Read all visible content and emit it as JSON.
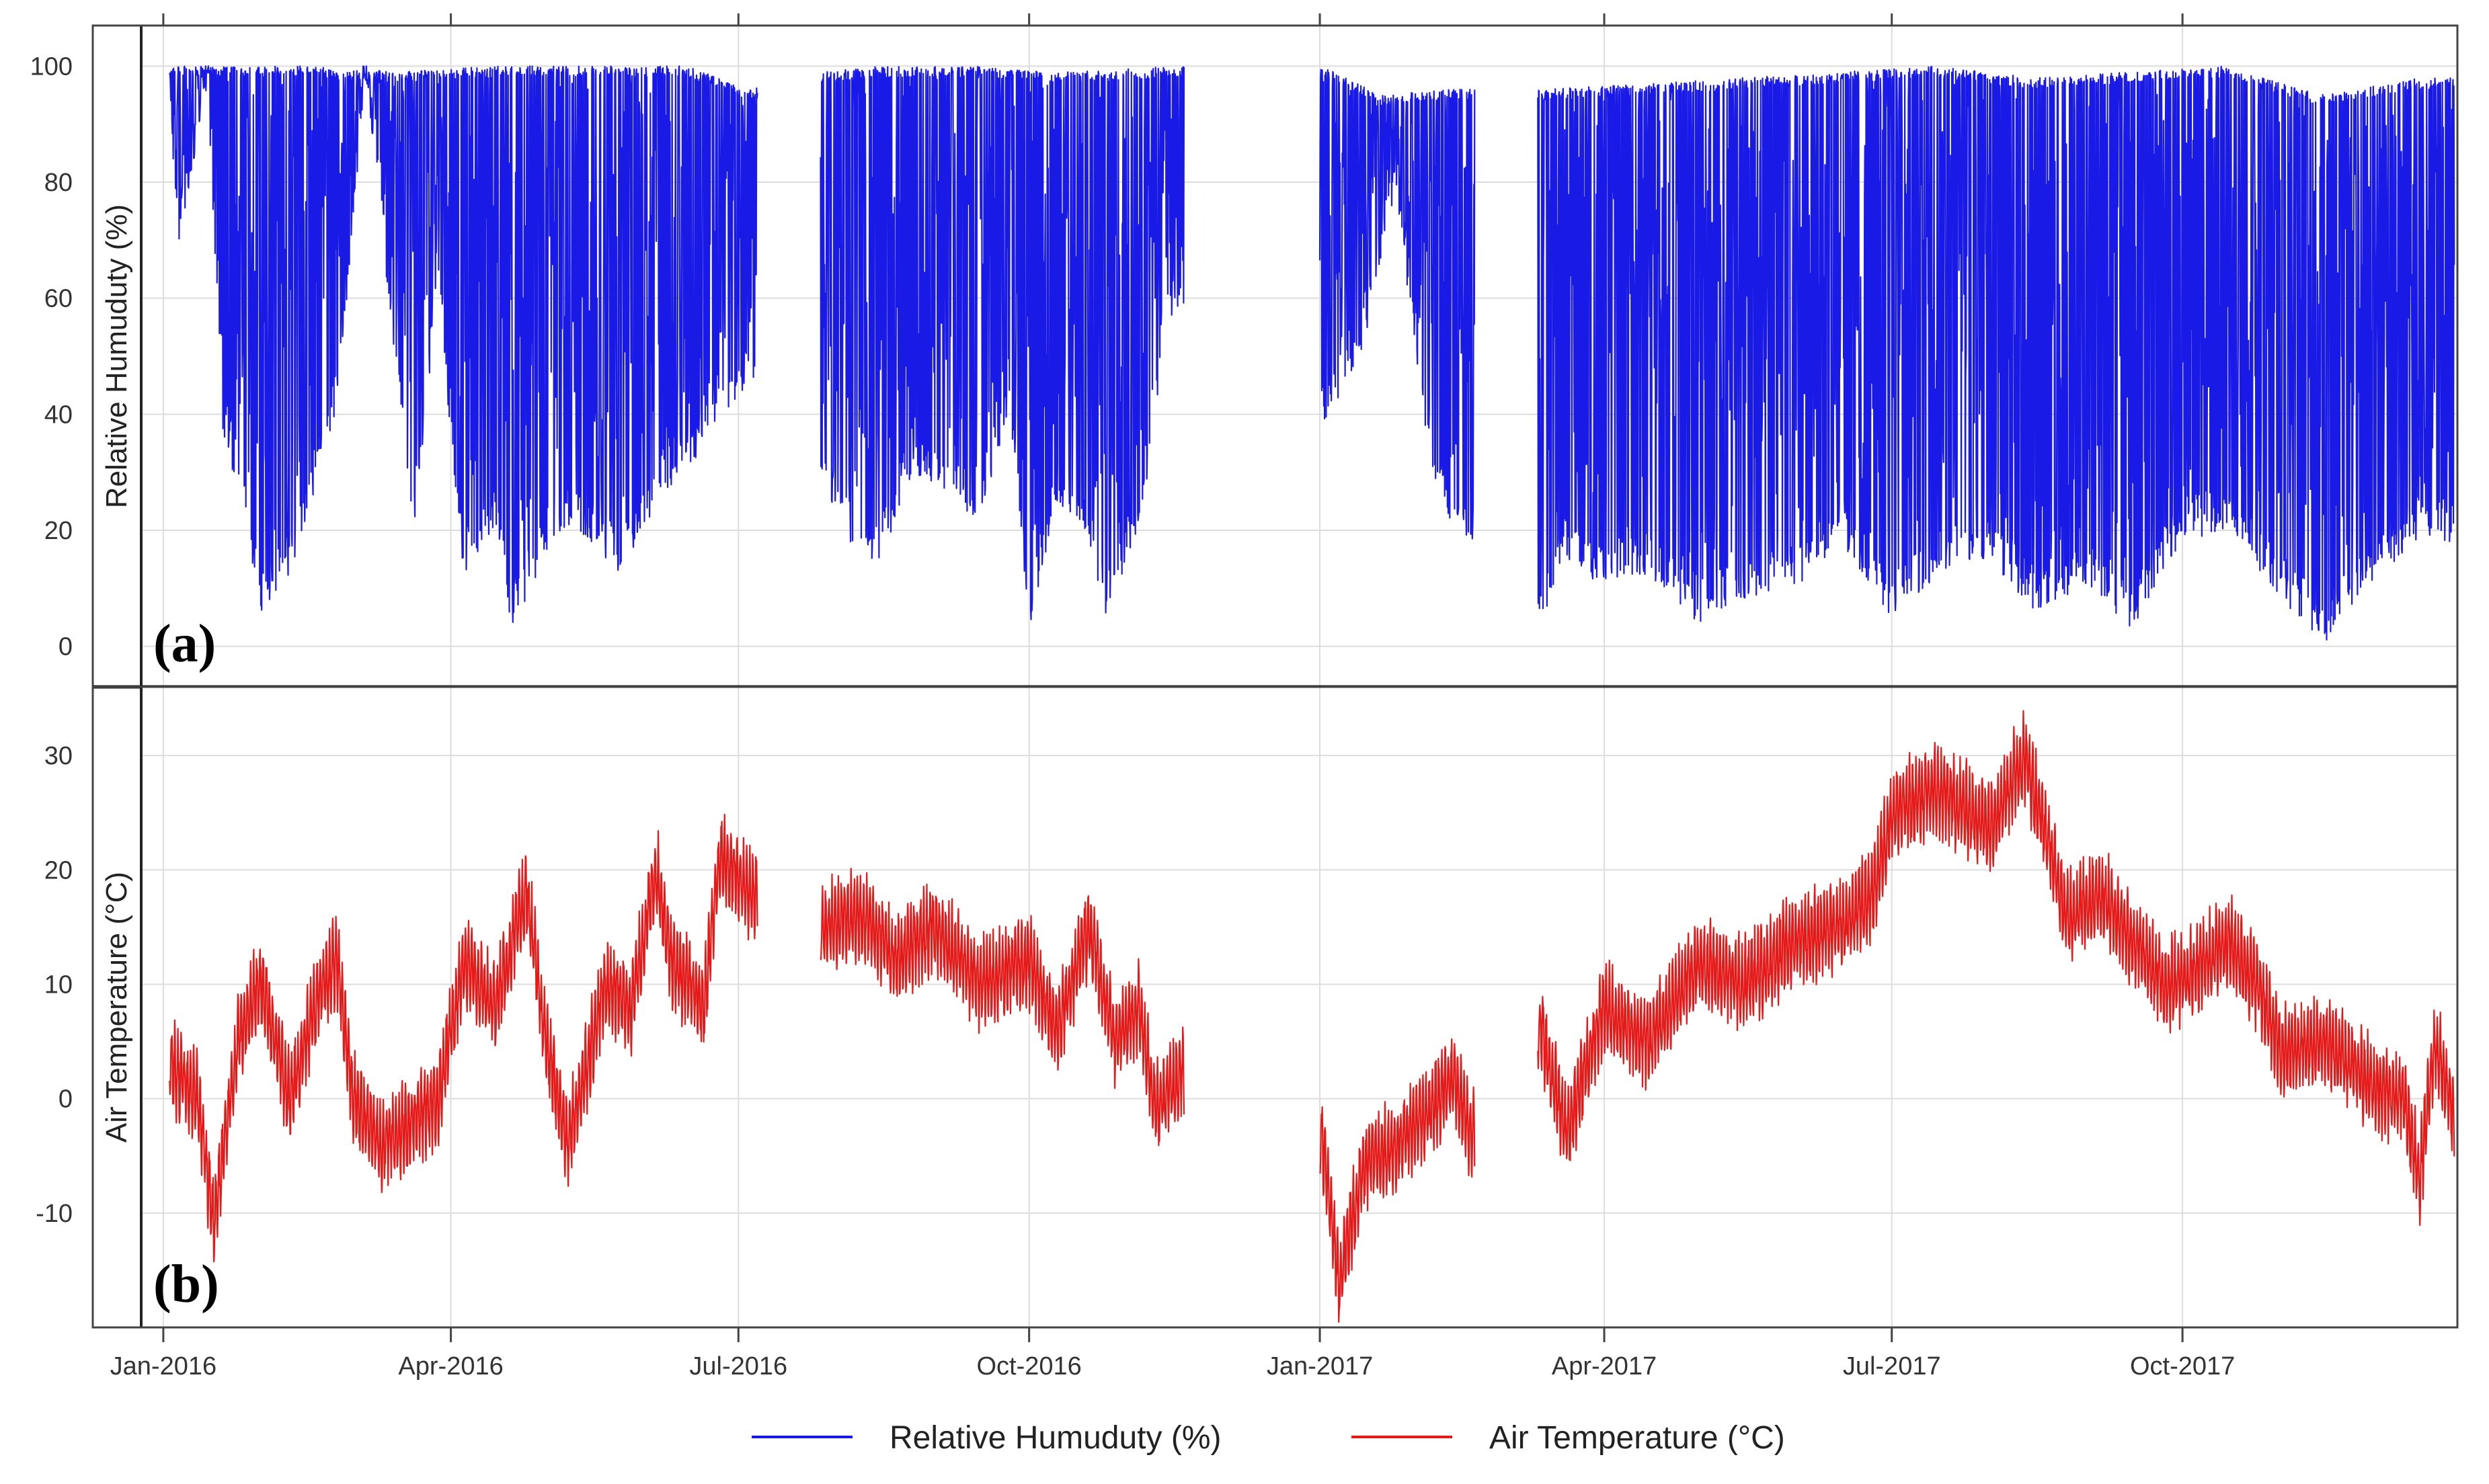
{
  "chart_data": [
    {
      "panel": "a",
      "panel_label_text": "a",
      "type": "line",
      "ylabel": "Relative Humuduty (%)",
      "ylim": [
        -7,
        107
      ],
      "yticks": [
        0,
        20,
        40,
        60,
        80,
        100
      ],
      "xlim": [
        "2015-12-25",
        "2017-12-27"
      ],
      "color": "#1a1ae6",
      "value_range": [
        0,
        100
      ],
      "gaps": [
        [
          "2016-07-07",
          "2016-07-27"
        ],
        [
          "2016-11-19",
          "2017-01-01"
        ],
        [
          "2017-02-19",
          "2017-03-11"
        ]
      ],
      "series": [
        {
          "name": "Relative Humuduty (%)",
          "daily_min_envelope": [
            [
              "2016-01-03",
              92
            ],
            [
              "2016-01-06",
              70
            ],
            [
              "2016-01-15",
              96
            ],
            [
              "2016-01-20",
              36
            ],
            [
              "2016-01-25",
              26
            ],
            [
              "2016-02-01",
              6
            ],
            [
              "2016-02-10",
              12
            ],
            [
              "2016-02-15",
              20
            ],
            [
              "2016-02-25",
              40
            ],
            [
              "2016-03-05",
              99
            ],
            [
              "2016-03-20",
              18
            ],
            [
              "2016-03-28",
              60
            ],
            [
              "2016-04-05",
              12
            ],
            [
              "2016-04-15",
              20
            ],
            [
              "2016-04-20",
              3
            ],
            [
              "2016-04-25",
              8
            ],
            [
              "2016-05-05",
              20
            ],
            [
              "2016-05-15",
              18
            ],
            [
              "2016-05-25",
              12
            ],
            [
              "2016-06-05",
              24
            ],
            [
              "2016-06-15",
              30
            ],
            [
              "2016-06-25",
              40
            ],
            [
              "2016-07-05",
              44
            ],
            [
              "2016-07-28",
              26
            ],
            [
              "2016-08-05",
              18
            ],
            [
              "2016-08-15",
              14
            ],
            [
              "2016-08-25",
              30
            ],
            [
              "2016-09-05",
              25
            ],
            [
              "2016-09-15",
              22
            ],
            [
              "2016-09-25",
              40
            ],
            [
              "2016-10-01",
              3
            ],
            [
              "2016-10-10",
              25
            ],
            [
              "2016-10-20",
              18
            ],
            [
              "2016-10-25",
              5
            ],
            [
              "2016-11-05",
              20
            ],
            [
              "2016-11-15",
              57
            ],
            [
              "2017-01-02",
              37
            ],
            [
              "2017-01-15",
              52
            ],
            [
              "2017-01-25",
              78
            ],
            [
              "2017-02-05",
              30
            ],
            [
              "2017-02-12",
              21
            ],
            [
              "2017-03-12",
              4
            ],
            [
              "2017-03-20",
              15
            ],
            [
              "2017-04-01",
              10
            ],
            [
              "2017-04-15",
              12
            ],
            [
              "2017-05-01",
              4
            ],
            [
              "2017-05-15",
              8
            ],
            [
              "2017-06-01",
              10
            ],
            [
              "2017-06-15",
              18
            ],
            [
              "2017-07-01",
              5
            ],
            [
              "2017-07-15",
              12
            ],
            [
              "2017-08-01",
              15
            ],
            [
              "2017-08-15",
              6
            ],
            [
              "2017-09-01",
              10
            ],
            [
              "2017-09-15",
              3
            ],
            [
              "2017-10-01",
              18
            ],
            [
              "2017-10-15",
              20
            ],
            [
              "2017-11-01",
              8
            ],
            [
              "2017-11-15",
              0
            ],
            [
              "2017-12-01",
              12
            ],
            [
              "2017-12-15",
              18
            ]
          ],
          "daily_max_envelope": [
            [
              "2016-01-03",
              100
            ],
            [
              "2016-02-15",
              100
            ],
            [
              "2016-03-15",
              99
            ],
            [
              "2016-04-15",
              100
            ],
            [
              "2016-05-15",
              100
            ],
            [
              "2016-06-15",
              100
            ],
            [
              "2016-07-05",
              96
            ],
            [
              "2016-07-28",
              99
            ],
            [
              "2016-08-15",
              100
            ],
            [
              "2016-09-15",
              100
            ],
            [
              "2016-10-15",
              99
            ],
            [
              "2016-11-15",
              100
            ],
            [
              "2017-01-02",
              100
            ],
            [
              "2017-01-20",
              95
            ],
            [
              "2017-02-12",
              96
            ],
            [
              "2017-03-12",
              96
            ],
            [
              "2017-04-15",
              97
            ],
            [
              "2017-05-15",
              98
            ],
            [
              "2017-06-15",
              99
            ],
            [
              "2017-07-15",
              100
            ],
            [
              "2017-08-15",
              98
            ],
            [
              "2017-09-15",
              99
            ],
            [
              "2017-10-15",
              100
            ],
            [
              "2017-11-01",
              97
            ],
            [
              "2017-11-15",
              95
            ],
            [
              "2017-12-15",
              98
            ]
          ]
        }
      ]
    },
    {
      "panel": "b",
      "panel_label_text": "b",
      "type": "line",
      "ylabel": "Air Temperature (°C)",
      "ylim": [
        -20,
        36
      ],
      "yticks": [
        -10,
        0,
        10,
        20,
        30
      ],
      "xlim": [
        "2015-12-25",
        "2017-12-27"
      ],
      "color": "#e61919",
      "gaps": [
        [
          "2016-07-07",
          "2016-07-27"
        ],
        [
          "2016-11-19",
          "2017-01-01"
        ],
        [
          "2017-02-19",
          "2017-03-11"
        ]
      ],
      "series": [
        {
          "name": "Air Temperature (°C)",
          "trend": [
            [
              "2016-01-03",
              3
            ],
            [
              "2016-01-12",
              0
            ],
            [
              "2016-01-17",
              -11
            ],
            [
              "2016-01-25",
              6
            ],
            [
              "2016-02-01",
              10
            ],
            [
              "2016-02-10",
              0
            ],
            [
              "2016-02-20",
              10
            ],
            [
              "2016-02-25",
              12
            ],
            [
              "2016-03-01",
              0
            ],
            [
              "2016-03-10",
              -4
            ],
            [
              "2016-03-20",
              -2
            ],
            [
              "2016-03-28",
              0
            ],
            [
              "2016-04-05",
              12
            ],
            [
              "2016-04-15",
              8
            ],
            [
              "2016-04-25",
              18
            ],
            [
              "2016-05-01",
              5
            ],
            [
              "2016-05-08",
              -4
            ],
            [
              "2016-05-20",
              10
            ],
            [
              "2016-05-28",
              8
            ],
            [
              "2016-06-05",
              20
            ],
            [
              "2016-06-10",
              12
            ],
            [
              "2016-06-20",
              8
            ],
            [
              "2016-06-25",
              21
            ],
            [
              "2016-07-05",
              18
            ],
            [
              "2016-07-28",
              15
            ],
            [
              "2016-08-10",
              16
            ],
            [
              "2016-08-20",
              12
            ],
            [
              "2016-09-01",
              15
            ],
            [
              "2016-09-15",
              10
            ],
            [
              "2016-10-01",
              12
            ],
            [
              "2016-10-10",
              6
            ],
            [
              "2016-10-20",
              15
            ],
            [
              "2016-10-28",
              5
            ],
            [
              "2016-11-05",
              8
            ],
            [
              "2016-11-10",
              -1
            ],
            [
              "2016-11-18",
              2
            ],
            [
              "2017-01-02",
              -4
            ],
            [
              "2017-01-07",
              -16
            ],
            [
              "2017-01-15",
              -6
            ],
            [
              "2017-01-25",
              -4
            ],
            [
              "2017-02-05",
              -1
            ],
            [
              "2017-02-12",
              2
            ],
            [
              "2017-02-18",
              -3
            ],
            [
              "2017-03-12",
              6
            ],
            [
              "2017-03-20",
              -3
            ],
            [
              "2017-04-01",
              8
            ],
            [
              "2017-04-15",
              5
            ],
            [
              "2017-05-01",
              12
            ],
            [
              "2017-05-15",
              10
            ],
            [
              "2017-06-01",
              14
            ],
            [
              "2017-06-15",
              15
            ],
            [
              "2017-06-25",
              18
            ],
            [
              "2017-07-01",
              25
            ],
            [
              "2017-07-15",
              27
            ],
            [
              "2017-08-01",
              24
            ],
            [
              "2017-08-12",
              30
            ],
            [
              "2017-08-20",
              22
            ],
            [
              "2017-08-25",
              16
            ],
            [
              "2017-09-05",
              18
            ],
            [
              "2017-09-15",
              14
            ],
            [
              "2017-09-25",
              10
            ],
            [
              "2017-10-05",
              11
            ],
            [
              "2017-10-15",
              14
            ],
            [
              "2017-10-25",
              10
            ],
            [
              "2017-11-01",
              4
            ],
            [
              "2017-11-15",
              5
            ],
            [
              "2017-12-01",
              1
            ],
            [
              "2017-12-10",
              0
            ],
            [
              "2017-12-15",
              -7
            ],
            [
              "2017-12-20",
              5
            ],
            [
              "2017-12-26",
              -2
            ]
          ]
        }
      ]
    }
  ],
  "x_axis": {
    "tick_dates": [
      "2016-01-01",
      "2016-04-01",
      "2016-07-01",
      "2016-10-01",
      "2017-01-01",
      "2017-04-01",
      "2017-07-01",
      "2017-10-01"
    ],
    "tick_labels": [
      "Jan-2016",
      "Apr-2016",
      "Jul-2016",
      "Oct-2016",
      "Jan-2017",
      "Apr-2017",
      "Jul-2017",
      "Oct-2017"
    ]
  },
  "legend": {
    "placement": "bottom",
    "items": [
      {
        "label": "Relative Humuduty (%)",
        "color": "#1a1ae6"
      },
      {
        "label": "Air Temperature (°C)",
        "color": "#e61919"
      }
    ]
  }
}
